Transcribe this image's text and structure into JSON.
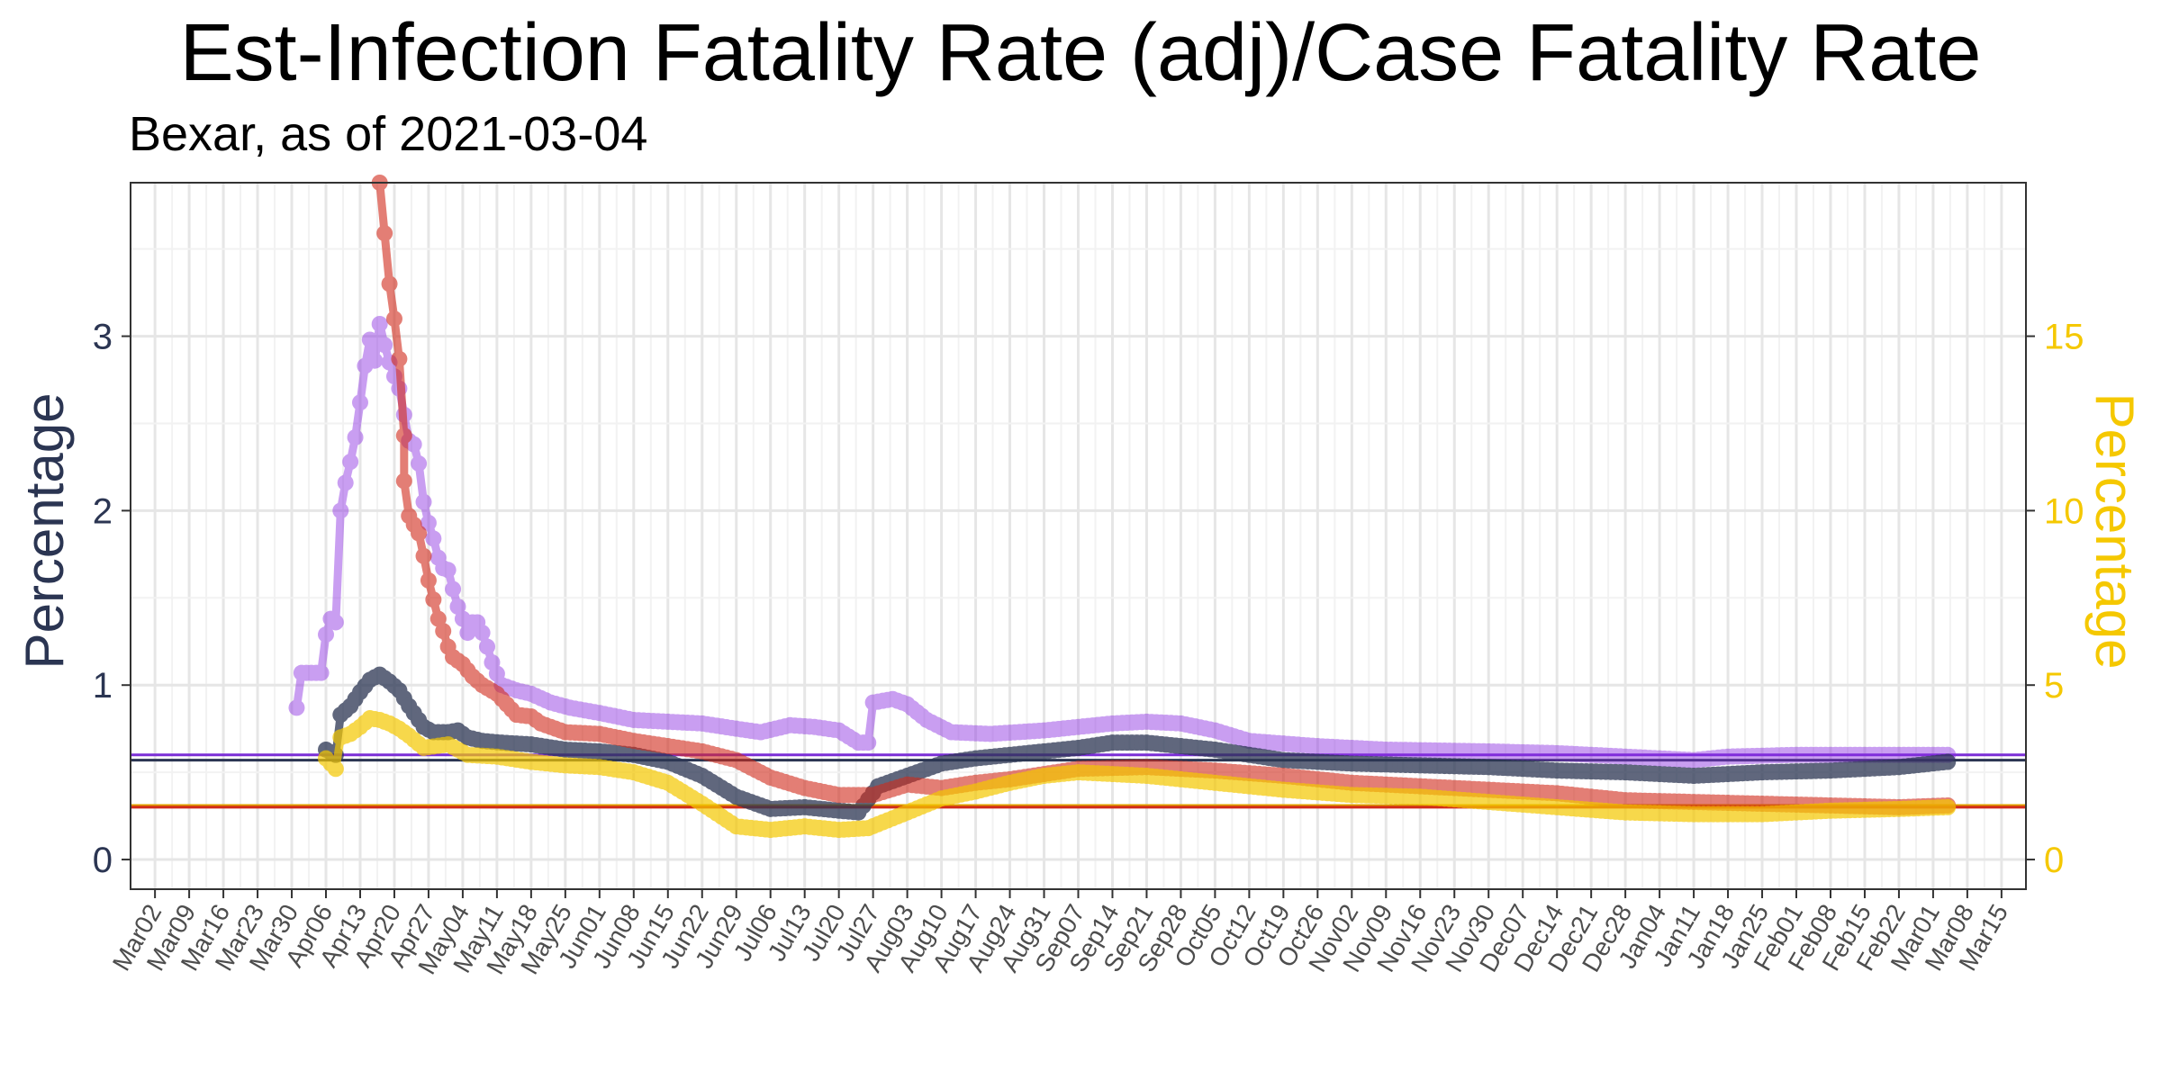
{
  "chart_data": {
    "type": "line",
    "title": "Est-Infection Fatality Rate (adj)/Case Fatality Rate",
    "subtitle": "Bexar, as of 2021-03-04",
    "ylabel_left": "Percentage",
    "ylabel_right": "Percentage",
    "y_left_ticks": [
      0,
      1,
      2,
      3
    ],
    "y_left_range": [
      -0.17,
      3.88
    ],
    "y_right_ticks": [
      0,
      5,
      10,
      15
    ],
    "y_right_range": [
      -0.85,
      19.4
    ],
    "x_range": [
      "2020-02-26",
      "2021-03-20"
    ],
    "x_ticks": [
      "Mar02",
      "Mar09",
      "Mar16",
      "Mar23",
      "Mar30",
      "Apr06",
      "Apr13",
      "Apr20",
      "Apr27",
      "May04",
      "May11",
      "May18",
      "May25",
      "Jun01",
      "Jun08",
      "Jun15",
      "Jun22",
      "Jun29",
      "Jul06",
      "Jul13",
      "Jul20",
      "Jul27",
      "Aug03",
      "Aug10",
      "Aug17",
      "Aug24",
      "Aug31",
      "Sep07",
      "Sep14",
      "Sep21",
      "Sep28",
      "Oct05",
      "Oct12",
      "Oct19",
      "Oct26",
      "Nov02",
      "Nov09",
      "Nov16",
      "Nov23",
      "Nov30",
      "Dec07",
      "Dec14",
      "Dec21",
      "Dec28",
      "Jan04",
      "Jan11",
      "Jan18",
      "Jan25",
      "Feb01",
      "Feb08",
      "Feb15",
      "Feb22",
      "Mar01",
      "Mar08",
      "Mar15"
    ],
    "x_tick_dates": [
      "2020-03-02",
      "2020-03-09",
      "2020-03-16",
      "2020-03-23",
      "2020-03-30",
      "2020-04-06",
      "2020-04-13",
      "2020-04-20",
      "2020-04-27",
      "2020-05-04",
      "2020-05-11",
      "2020-05-18",
      "2020-05-25",
      "2020-06-01",
      "2020-06-08",
      "2020-06-15",
      "2020-06-22",
      "2020-06-29",
      "2020-07-06",
      "2020-07-13",
      "2020-07-20",
      "2020-07-27",
      "2020-08-03",
      "2020-08-10",
      "2020-08-17",
      "2020-08-24",
      "2020-08-31",
      "2020-09-07",
      "2020-09-14",
      "2020-09-21",
      "2020-09-28",
      "2020-10-05",
      "2020-10-12",
      "2020-10-19",
      "2020-10-26",
      "2020-11-02",
      "2020-11-09",
      "2020-11-16",
      "2020-11-23",
      "2020-11-30",
      "2020-12-07",
      "2020-12-14",
      "2020-12-21",
      "2020-12-28",
      "2021-01-04",
      "2021-01-11",
      "2021-01-18",
      "2021-01-25",
      "2021-02-01",
      "2021-02-08",
      "2021-02-15",
      "2021-02-22",
      "2021-03-01",
      "2021-03-08",
      "2021-03-15"
    ],
    "hlines": [
      {
        "y": 0.6,
        "color": "#7b2fd6",
        "axis": "left"
      },
      {
        "y": 0.57,
        "color": "#2b3552",
        "axis": "left"
      },
      {
        "y": 0.31,
        "color": "#e0a000",
        "axis": "left"
      },
      {
        "y": 0.3,
        "color": "#d12a1a",
        "axis": "left"
      }
    ],
    "series": [
      {
        "color": "#8a2be2",
        "axis": "left",
        "opacity": 0.45,
        "points": [
          [
            "2020-03-31",
            0.87
          ],
          [
            "2020-04-01",
            1.07
          ],
          [
            "2020-04-03",
            1.07
          ],
          [
            "2020-04-05",
            1.07
          ],
          [
            "2020-04-06",
            1.29
          ],
          [
            "2020-04-07",
            1.38
          ],
          [
            "2020-04-08",
            1.36
          ],
          [
            "2020-04-09",
            2.0
          ],
          [
            "2020-04-10",
            2.16
          ],
          [
            "2020-04-11",
            2.28
          ],
          [
            "2020-04-12",
            2.42
          ],
          [
            "2020-04-13",
            2.62
          ],
          [
            "2020-04-14",
            2.83
          ],
          [
            "2020-04-15",
            2.98
          ],
          [
            "2020-04-16",
            2.86
          ],
          [
            "2020-04-17",
            3.07
          ],
          [
            "2020-04-18",
            2.95
          ],
          [
            "2020-04-19",
            2.85
          ],
          [
            "2020-04-20",
            2.77
          ],
          [
            "2020-04-21",
            2.7
          ],
          [
            "2020-04-22",
            2.55
          ],
          [
            "2020-04-23",
            2.4
          ],
          [
            "2020-04-24",
            2.38
          ],
          [
            "2020-04-25",
            2.27
          ],
          [
            "2020-04-26",
            2.05
          ],
          [
            "2020-04-27",
            1.93
          ],
          [
            "2020-04-28",
            1.84
          ],
          [
            "2020-04-29",
            1.73
          ],
          [
            "2020-04-30",
            1.67
          ],
          [
            "2020-05-01",
            1.66
          ],
          [
            "2020-05-02",
            1.55
          ],
          [
            "2020-05-03",
            1.45
          ],
          [
            "2020-05-04",
            1.38
          ],
          [
            "2020-05-05",
            1.3
          ],
          [
            "2020-05-06",
            1.36
          ],
          [
            "2020-05-07",
            1.36
          ],
          [
            "2020-05-08",
            1.3
          ],
          [
            "2020-05-09",
            1.22
          ],
          [
            "2020-05-10",
            1.13
          ],
          [
            "2020-05-12",
            1.0
          ],
          [
            "2020-05-15",
            0.97
          ],
          [
            "2020-05-18",
            0.95
          ],
          [
            "2020-05-22",
            0.9
          ],
          [
            "2020-05-26",
            0.87
          ],
          [
            "2020-06-01",
            0.84
          ],
          [
            "2020-06-08",
            0.8
          ],
          [
            "2020-06-15",
            0.79
          ],
          [
            "2020-06-22",
            0.78
          ],
          [
            "2020-06-29",
            0.75
          ],
          [
            "2020-07-04",
            0.73
          ],
          [
            "2020-07-10",
            0.77
          ],
          [
            "2020-07-15",
            0.76
          ],
          [
            "2020-07-20",
            0.74
          ],
          [
            "2020-07-24",
            0.67
          ],
          [
            "2020-07-26",
            0.67
          ],
          [
            "2020-07-27",
            0.9
          ],
          [
            "2020-07-31",
            0.92
          ],
          [
            "2020-08-03",
            0.89
          ],
          [
            "2020-08-07",
            0.8
          ],
          [
            "2020-08-12",
            0.73
          ],
          [
            "2020-08-20",
            0.72
          ],
          [
            "2020-08-31",
            0.74
          ],
          [
            "2020-09-07",
            0.76
          ],
          [
            "2020-09-14",
            0.78
          ],
          [
            "2020-09-21",
            0.79
          ],
          [
            "2020-09-28",
            0.78
          ],
          [
            "2020-10-05",
            0.74
          ],
          [
            "2020-10-12",
            0.68
          ],
          [
            "2020-10-26",
            0.65
          ],
          [
            "2020-11-09",
            0.63
          ],
          [
            "2020-11-30",
            0.62
          ],
          [
            "2020-12-14",
            0.61
          ],
          [
            "2020-12-28",
            0.59
          ],
          [
            "2021-01-04",
            0.58
          ],
          [
            "2021-01-11",
            0.57
          ],
          [
            "2021-01-18",
            0.59
          ],
          [
            "2021-02-01",
            0.6
          ],
          [
            "2021-02-15",
            0.6
          ],
          [
            "2021-03-04",
            0.6
          ]
        ]
      },
      {
        "color": "#2b3552",
        "axis": "left",
        "opacity": 0.75,
        "points": [
          [
            "2020-04-06",
            0.63
          ],
          [
            "2020-04-08",
            0.6
          ],
          [
            "2020-04-09",
            0.83
          ],
          [
            "2020-04-11",
            0.88
          ],
          [
            "2020-04-13",
            0.96
          ],
          [
            "2020-04-15",
            1.03
          ],
          [
            "2020-04-17",
            1.06
          ],
          [
            "2020-04-19",
            1.02
          ],
          [
            "2020-04-21",
            0.97
          ],
          [
            "2020-04-23",
            0.88
          ],
          [
            "2020-04-26",
            0.76
          ],
          [
            "2020-04-28",
            0.73
          ],
          [
            "2020-05-01",
            0.73
          ],
          [
            "2020-05-03",
            0.74
          ],
          [
            "2020-05-05",
            0.7
          ],
          [
            "2020-05-08",
            0.68
          ],
          [
            "2020-05-12",
            0.67
          ],
          [
            "2020-05-18",
            0.66
          ],
          [
            "2020-05-25",
            0.63
          ],
          [
            "2020-06-01",
            0.62
          ],
          [
            "2020-06-08",
            0.6
          ],
          [
            "2020-06-15",
            0.56
          ],
          [
            "2020-06-22",
            0.48
          ],
          [
            "2020-06-29",
            0.36
          ],
          [
            "2020-07-06",
            0.29
          ],
          [
            "2020-07-13",
            0.3
          ],
          [
            "2020-07-20",
            0.28
          ],
          [
            "2020-07-24",
            0.27
          ],
          [
            "2020-07-28",
            0.42
          ],
          [
            "2020-08-03",
            0.48
          ],
          [
            "2020-08-10",
            0.55
          ],
          [
            "2020-08-17",
            0.58
          ],
          [
            "2020-08-24",
            0.6
          ],
          [
            "2020-09-07",
            0.64
          ],
          [
            "2020-09-14",
            0.67
          ],
          [
            "2020-09-21",
            0.67
          ],
          [
            "2020-10-05",
            0.63
          ],
          [
            "2020-10-19",
            0.57
          ],
          [
            "2020-11-02",
            0.55
          ],
          [
            "2020-11-30",
            0.53
          ],
          [
            "2020-12-14",
            0.51
          ],
          [
            "2020-12-28",
            0.5
          ],
          [
            "2021-01-11",
            0.48
          ],
          [
            "2021-01-25",
            0.5
          ],
          [
            "2021-02-08",
            0.51
          ],
          [
            "2021-02-22",
            0.53
          ],
          [
            "2021-03-04",
            0.56
          ]
        ]
      },
      {
        "color": "#d12a1a",
        "axis": "left",
        "opacity": 0.6,
        "points": [
          [
            "2020-04-17",
            3.88
          ],
          [
            "2020-04-19",
            3.3
          ],
          [
            "2020-04-20",
            3.1
          ],
          [
            "2020-04-21",
            2.87
          ],
          [
            "2020-04-22",
            2.43
          ],
          [
            "2020-04-22",
            2.17
          ],
          [
            "2020-04-23",
            1.97
          ],
          [
            "2020-04-25",
            1.87
          ],
          [
            "2020-04-26",
            1.74
          ],
          [
            "2020-04-27",
            1.6
          ],
          [
            "2020-04-28",
            1.49
          ],
          [
            "2020-04-29",
            1.38
          ],
          [
            "2020-04-30",
            1.31
          ],
          [
            "2020-05-01",
            1.22
          ],
          [
            "2020-05-02",
            1.16
          ],
          [
            "2020-05-04",
            1.12
          ],
          [
            "2020-05-06",
            1.05
          ],
          [
            "2020-05-08",
            1.0
          ],
          [
            "2020-05-11",
            0.95
          ],
          [
            "2020-05-13",
            0.89
          ],
          [
            "2020-05-15",
            0.83
          ],
          [
            "2020-05-18",
            0.82
          ],
          [
            "2020-05-20",
            0.78
          ],
          [
            "2020-05-25",
            0.73
          ],
          [
            "2020-06-01",
            0.72
          ],
          [
            "2020-06-08",
            0.68
          ],
          [
            "2020-06-15",
            0.65
          ],
          [
            "2020-06-22",
            0.62
          ],
          [
            "2020-06-29",
            0.57
          ],
          [
            "2020-07-06",
            0.47
          ],
          [
            "2020-07-13",
            0.41
          ],
          [
            "2020-07-20",
            0.37
          ],
          [
            "2020-07-27",
            0.37
          ],
          [
            "2020-08-03",
            0.43
          ],
          [
            "2020-08-10",
            0.41
          ],
          [
            "2020-08-17",
            0.44
          ],
          [
            "2020-08-24",
            0.46
          ],
          [
            "2020-08-31",
            0.49
          ],
          [
            "2020-09-07",
            0.52
          ],
          [
            "2020-09-21",
            0.53
          ],
          [
            "2020-10-05",
            0.51
          ],
          [
            "2020-10-19",
            0.48
          ],
          [
            "2020-11-02",
            0.44
          ],
          [
            "2020-11-16",
            0.42
          ],
          [
            "2020-11-30",
            0.4
          ],
          [
            "2020-12-14",
            0.38
          ],
          [
            "2020-12-28",
            0.34
          ],
          [
            "2021-01-11",
            0.33
          ],
          [
            "2021-01-25",
            0.32
          ],
          [
            "2021-02-08",
            0.31
          ],
          [
            "2021-02-22",
            0.3
          ],
          [
            "2021-03-04",
            0.31
          ]
        ]
      },
      {
        "color": "#f5c800",
        "axis": "right",
        "opacity": 0.7,
        "points": [
          [
            "2020-04-06",
            2.9
          ],
          [
            "2020-04-08",
            2.6
          ],
          [
            "2020-04-09",
            3.5
          ],
          [
            "2020-04-11",
            3.6
          ],
          [
            "2020-04-13",
            3.8
          ],
          [
            "2020-04-15",
            4.05
          ],
          [
            "2020-04-17",
            4.0
          ],
          [
            "2020-04-19",
            3.9
          ],
          [
            "2020-04-21",
            3.75
          ],
          [
            "2020-04-23",
            3.55
          ],
          [
            "2020-04-26",
            3.2
          ],
          [
            "2020-05-01",
            3.3
          ],
          [
            "2020-05-05",
            3.0
          ],
          [
            "2020-05-11",
            2.95
          ],
          [
            "2020-05-18",
            2.8
          ],
          [
            "2020-05-25",
            2.7
          ],
          [
            "2020-06-01",
            2.65
          ],
          [
            "2020-06-08",
            2.5
          ],
          [
            "2020-06-15",
            2.2
          ],
          [
            "2020-06-22",
            1.6
          ],
          [
            "2020-06-29",
            0.95
          ],
          [
            "2020-07-06",
            0.85
          ],
          [
            "2020-07-13",
            0.95
          ],
          [
            "2020-07-20",
            0.85
          ],
          [
            "2020-07-26",
            0.9
          ],
          [
            "2020-08-03",
            1.35
          ],
          [
            "2020-08-10",
            1.75
          ],
          [
            "2020-08-17",
            1.95
          ],
          [
            "2020-08-24",
            2.2
          ],
          [
            "2020-08-31",
            2.4
          ],
          [
            "2020-09-07",
            2.5
          ],
          [
            "2020-09-21",
            2.4
          ],
          [
            "2020-10-05",
            2.2
          ],
          [
            "2020-10-19",
            2.0
          ],
          [
            "2020-11-02",
            1.85
          ],
          [
            "2020-11-16",
            1.8
          ],
          [
            "2020-11-30",
            1.65
          ],
          [
            "2020-12-14",
            1.5
          ],
          [
            "2020-12-28",
            1.35
          ],
          [
            "2021-01-11",
            1.3
          ],
          [
            "2021-01-25",
            1.3
          ],
          [
            "2021-02-08",
            1.4
          ],
          [
            "2021-02-22",
            1.45
          ],
          [
            "2021-03-04",
            1.5
          ]
        ]
      }
    ]
  }
}
